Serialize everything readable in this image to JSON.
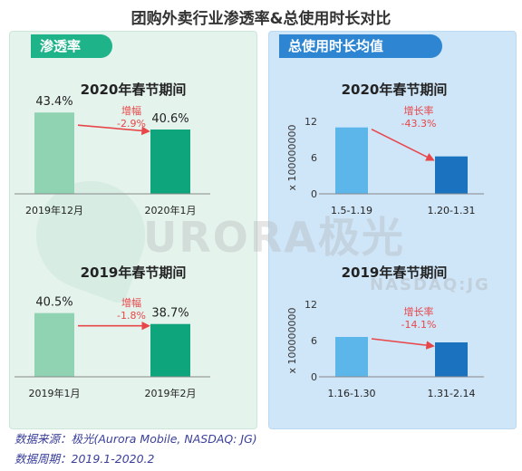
{
  "title": "团购外卖行业渗透率&总使用时长对比",
  "watermark": {
    "main": "URORA极光",
    "sub": "NASDAQ:JG"
  },
  "panels": {
    "left": {
      "tag": "渗透率"
    },
    "right": {
      "tag": "总使用时长均值"
    }
  },
  "footer": {
    "source": "数据来源：极光(Aurora Mobile, NASDAQ: JG)",
    "period": "数据周期：2019.1-2020.2"
  },
  "colors": {
    "green_light": "#8fd3b3",
    "green_dark": "#0fa57c",
    "blue_light": "#5db6ea",
    "blue_dark": "#1b73bf",
    "arrow": "#e8474a"
  },
  "chart_data": [
    {
      "type": "bar",
      "title": "2020年春节期间",
      "categories": [
        "2019年12月",
        "2020年1月"
      ],
      "values": [
        43.4,
        40.6
      ],
      "labels": [
        "43.4%",
        "40.6%"
      ],
      "change_label": "增幅",
      "change": "-2.9%"
    },
    {
      "type": "bar",
      "title": "2019年春节期间",
      "categories": [
        "2019年1月",
        "2019年2月"
      ],
      "values": [
        40.5,
        38.7
      ],
      "labels": [
        "40.5%",
        "38.7%"
      ],
      "change_label": "增幅",
      "change": "-1.8%"
    },
    {
      "type": "bar",
      "title": "2020年春节期间",
      "categories": [
        "1.5-1.19",
        "1.20-1.31"
      ],
      "values": [
        11,
        6.2
      ],
      "ylabel": "x 100000000",
      "yticks": [
        "0",
        "6",
        "12"
      ],
      "ylim": [
        0,
        12
      ],
      "change_label": "增长率",
      "change": "-43.3%"
    },
    {
      "type": "bar",
      "title": "2019年春节期间",
      "categories": [
        "1.16-1.30",
        "1.31-2.14"
      ],
      "values": [
        6.6,
        5.7
      ],
      "ylabel": "x 100000000",
      "yticks": [
        "0",
        "6",
        "12"
      ],
      "ylim": [
        0,
        12
      ],
      "change_label": "增长率",
      "change": "-14.1%"
    }
  ]
}
